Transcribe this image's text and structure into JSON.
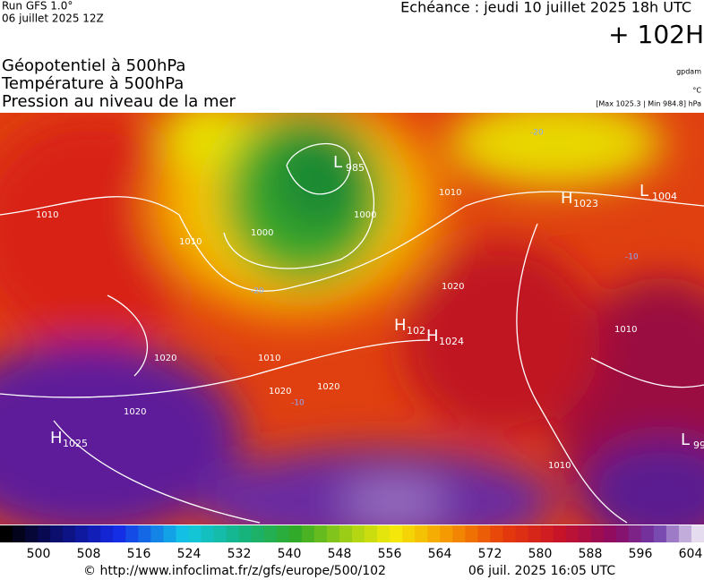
{
  "header": {
    "run": "Run GFS 1.0°",
    "date": "06 juillet 2025 12Z",
    "echeance": "Echéance : jeudi 10 juillet 2025 18h UTC",
    "lead": "+ 102H",
    "line1": "Géopotentiel à 500hPa",
    "line2": "Température à 500hPa",
    "line3": "Pression au niveau de la mer",
    "unit1": "gpdam",
    "unit2": "°C",
    "unit3": "[Max 1025.3 | Min 984.8] hPa"
  },
  "map": {
    "centers": [
      {
        "symbol": "L",
        "value": "985"
      },
      {
        "symbol": "H",
        "value": "1023"
      },
      {
        "symbol": "L",
        "value": "1004"
      },
      {
        "symbol": "H",
        "value": "102"
      },
      {
        "symbol": "H",
        "value": "1024"
      },
      {
        "symbol": "H",
        "value": "1025"
      },
      {
        "symbol": "L",
        "value": "99"
      }
    ],
    "isobar_labels": [
      "1010",
      "1000",
      "1000",
      "1010",
      "1020",
      "1020",
      "1020",
      "1020",
      "1010",
      "1010",
      "1010",
      "1020",
      "1010"
    ],
    "temperature_labels": [
      "-20",
      "-20",
      "-10",
      "-10"
    ]
  },
  "colorbar": {
    "ticks": [
      "500",
      "508",
      "516",
      "524",
      "532",
      "540",
      "548",
      "556",
      "564",
      "572",
      "580",
      "588",
      "596",
      "604"
    ]
  },
  "footer": {
    "url": "© http://www.infoclimat.fr/z/gfs/europe/500/102",
    "stamp": "06 juil. 2025 16:05 UTC"
  }
}
